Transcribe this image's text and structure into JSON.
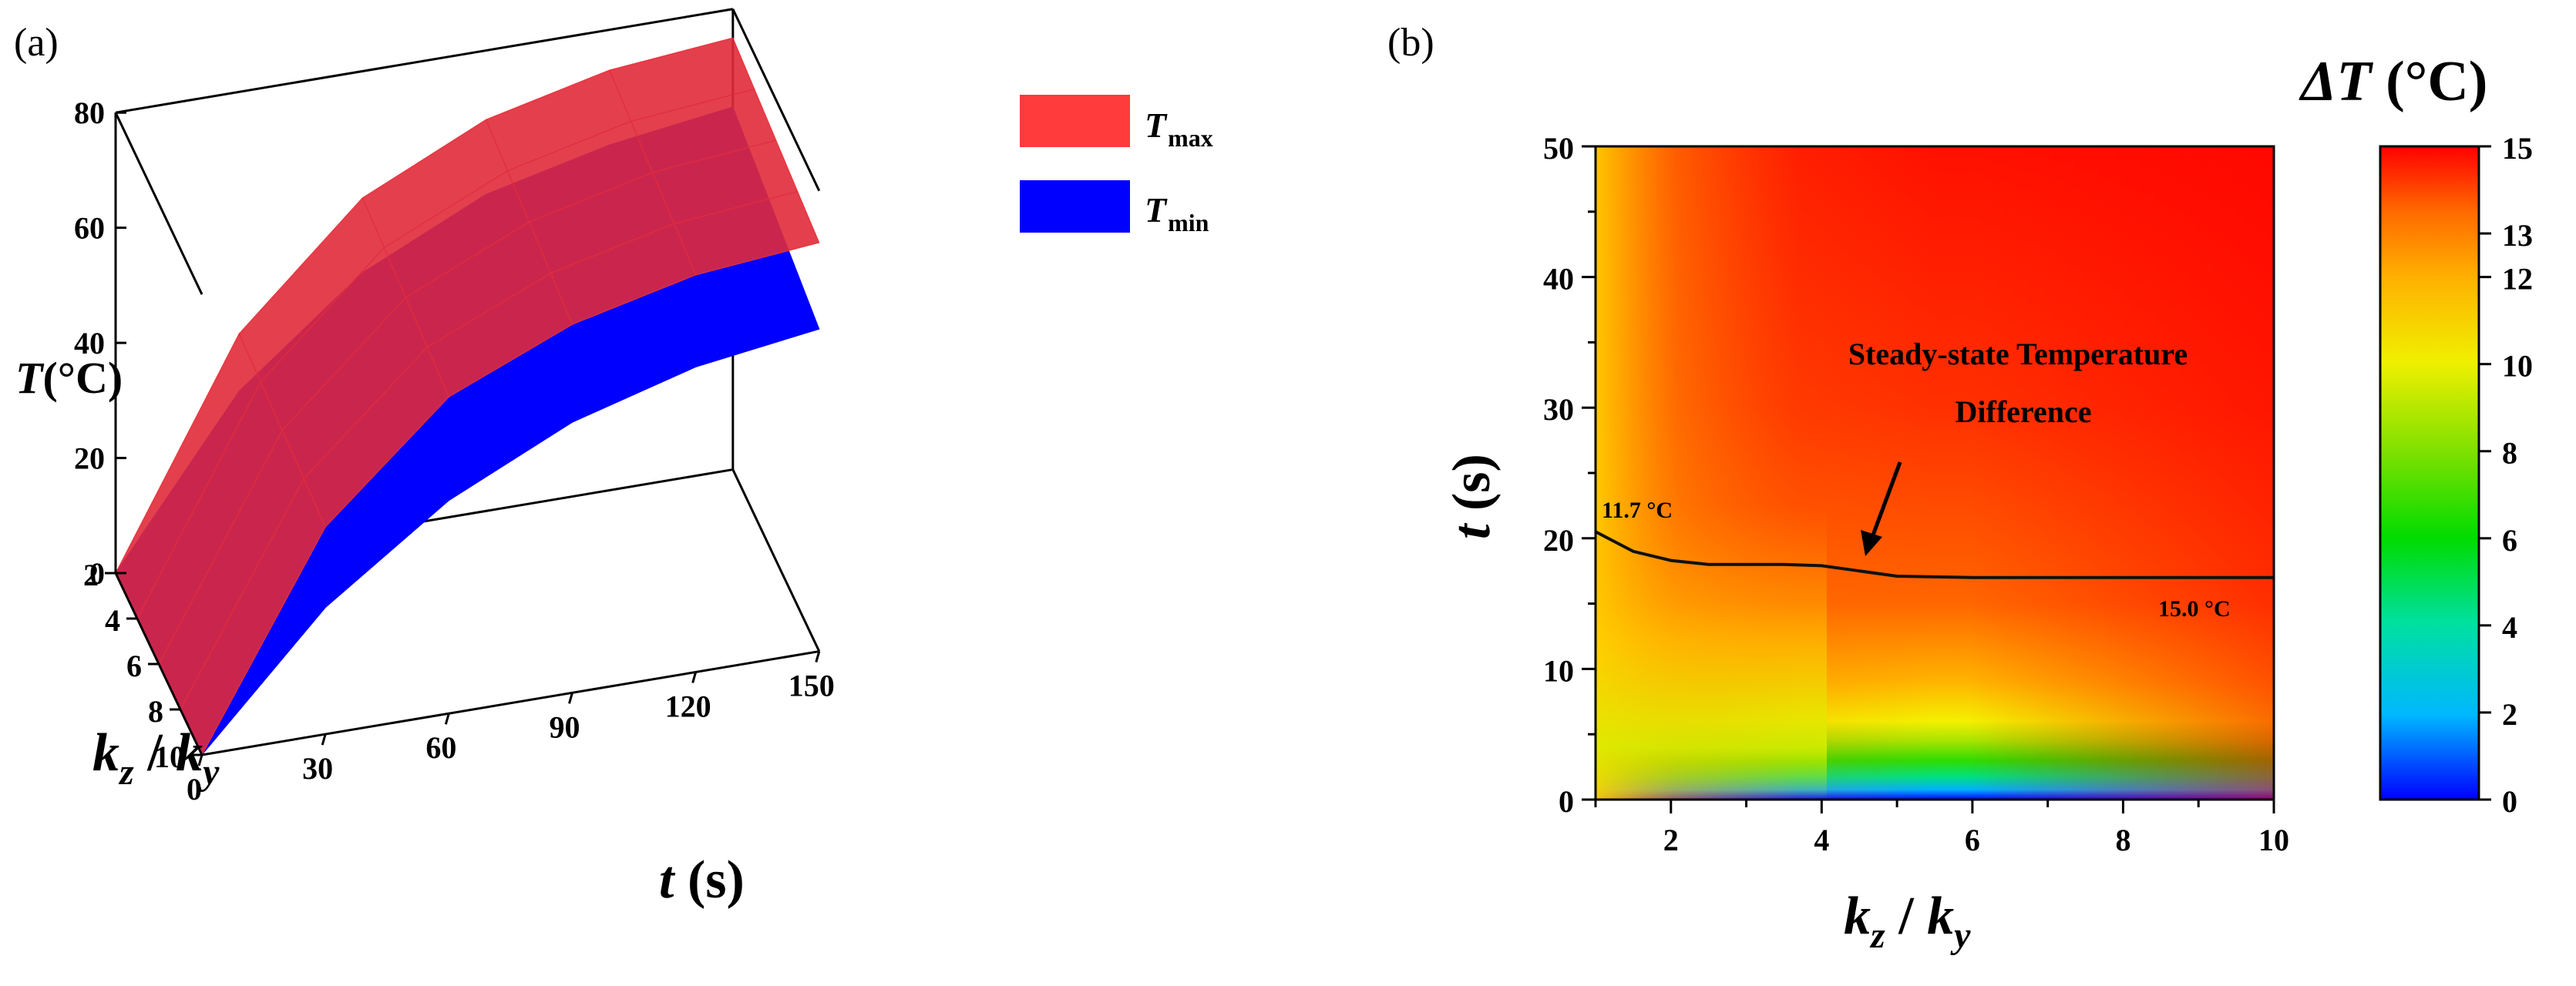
{
  "chart_data": [
    {
      "panel_label": "(a)",
      "type": "surface3d",
      "zlabel_var": "T",
      "zlabel_unit": "(°C)",
      "xlabel_var": "t",
      "xlabel_unit": " (s)",
      "ylabel_k1": "k",
      "ylabel_sub1": "z",
      "ylabel_sep": " / ",
      "ylabel_k2": "k",
      "ylabel_sub2": "y",
      "zlim": [
        0,
        80
      ],
      "z_ticks": [
        "0",
        "20",
        "40",
        "60",
        "80"
      ],
      "t_ticks": [
        "0",
        "30",
        "60",
        "90",
        "120",
        "150"
      ],
      "k_ticks": [
        "2",
        "4",
        "6",
        "8",
        "10"
      ],
      "t_range": [
        0,
        150
      ],
      "k_range": [
        2,
        10
      ],
      "legend": [
        {
          "var": "T",
          "sub": "max",
          "color": "#ff3b3b"
        },
        {
          "var": "T",
          "sub": "min",
          "color": "#0000ff"
        }
      ],
      "series": [
        {
          "name_var": "T",
          "name_sub": "max",
          "color": "#ff3b3b",
          "t": [
            0,
            30,
            60,
            90,
            120,
            150
          ],
          "values_at_k2": [
            0,
            38,
            58,
            68,
            73,
            75
          ],
          "values_at_k10": [
            0,
            36,
            55,
            64,
            69,
            71
          ]
        },
        {
          "name_var": "T",
          "name_sub": "min",
          "color": "#0000ff",
          "t": [
            0,
            30,
            60,
            90,
            120,
            150
          ],
          "values_at_k2": [
            0,
            28,
            45,
            55,
            60,
            63
          ],
          "values_at_k10": [
            0,
            22,
            37,
            47,
            53,
            56
          ]
        }
      ]
    },
    {
      "panel_label": "(b)",
      "type": "heatmap",
      "xlabel_k1": "k",
      "xlabel_sub1": "z",
      "xlabel_sep": " / ",
      "xlabel_k2": "k",
      "xlabel_sub2": "y",
      "ylabel_var": "t",
      "ylabel_unit": " (s)",
      "xlim": [
        1,
        10
      ],
      "ylim": [
        0,
        50
      ],
      "x_ticks": [
        "2",
        "4",
        "6",
        "8",
        "10"
      ],
      "y_ticks": [
        "0",
        "10",
        "20",
        "30",
        "40",
        "50"
      ],
      "colorbar_title_var": "ΔT",
      "colorbar_title_unit": " (°C)",
      "colorbar_range": [
        0,
        15
      ],
      "colorbar_ticks": [
        "0",
        "2",
        "4",
        "6",
        "8",
        "10",
        "12",
        "13",
        "15"
      ],
      "colormap": [
        "#0000ff",
        "#00b8ff",
        "#00e0a0",
        "#00dc00",
        "#7ce000",
        "#f0f000",
        "#ffb000",
        "#ff6a00",
        "#ff0000"
      ],
      "steady_state_curve": {
        "x": [
          1,
          1.5,
          2,
          2.5,
          3,
          3.5,
          4,
          4.5,
          5,
          6,
          7,
          8,
          9,
          10
        ],
        "t": [
          20.5,
          19,
          18.3,
          18,
          18,
          18,
          17.9,
          17.5,
          17.1,
          17,
          17,
          17,
          17,
          17
        ]
      },
      "annotations": {
        "title_line1": "Steady-state Temperature",
        "title_line2": "Difference",
        "start_value": "11.7 °C",
        "end_value": "15.0 °C"
      }
    }
  ]
}
